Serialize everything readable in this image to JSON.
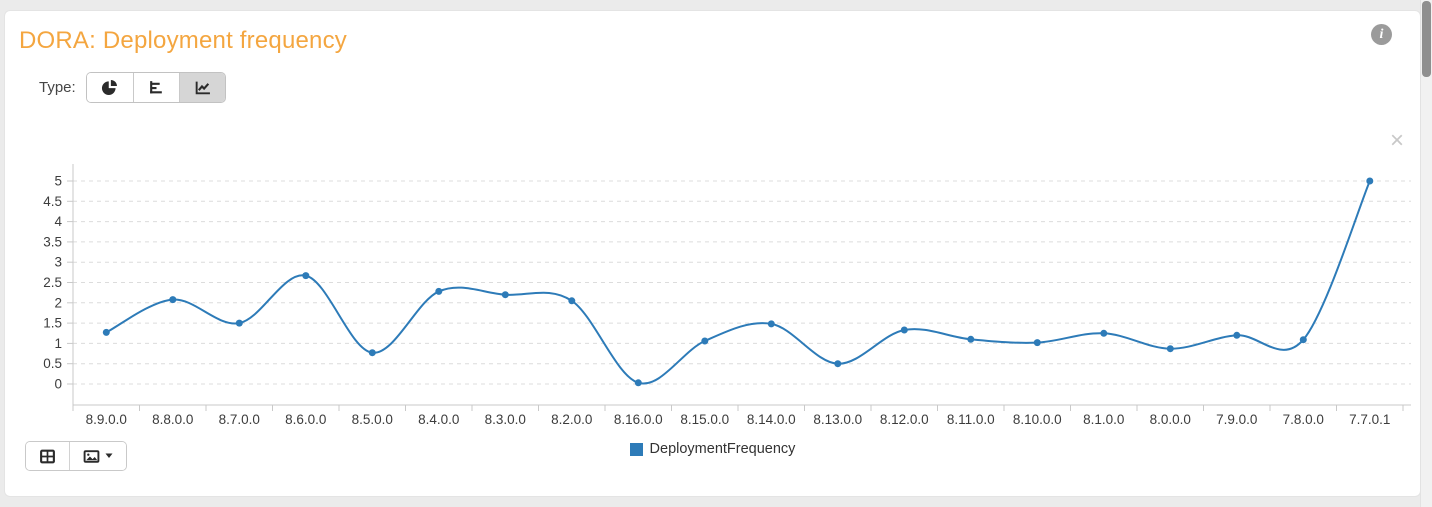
{
  "window": {
    "background_color": "#ebebeb"
  },
  "header": {
    "title": "DORA: Deployment frequency",
    "title_color": "#f4a640",
    "type_label": "Type:",
    "type_options": [
      "pie",
      "bar",
      "line"
    ],
    "selected_type": "line",
    "info_icon_glyph": "i"
  },
  "chart_panel": {
    "close_icon_glyph": "×"
  },
  "chart_data": {
    "type": "line",
    "title": "DORA: Deployment frequency",
    "curve": "spline",
    "markers": true,
    "grid": "horizontal-dashed",
    "legend_position": "bottom",
    "xlabel": "",
    "ylabel": "",
    "ylim": [
      0,
      5
    ],
    "yticks": [
      0,
      0.5,
      1,
      1.5,
      2,
      2.5,
      3,
      3.5,
      4,
      4.5,
      5
    ],
    "categories": [
      "8.9.0.0",
      "8.8.0.0",
      "8.7.0.0",
      "8.6.0.0",
      "8.5.0.0",
      "8.4.0.0",
      "8.3.0.0",
      "8.2.0.0",
      "8.16.0.0",
      "8.15.0.0",
      "8.14.0.0",
      "8.13.0.0",
      "8.12.0.0",
      "8.11.0.0",
      "8.10.0.0",
      "8.1.0.0",
      "8.0.0.0",
      "7.9.0.0",
      "7.8.0.0",
      "7.7.0.1"
    ],
    "series": [
      {
        "name": "DeploymentFrequency",
        "color": "#2d7bb8",
        "values": [
          1.27,
          2.08,
          1.5,
          2.67,
          0.77,
          2.28,
          2.2,
          2.05,
          0.03,
          1.06,
          1.48,
          0.5,
          1.33,
          1.1,
          1.02,
          1.25,
          0.87,
          1.2,
          1.09,
          5
        ]
      }
    ]
  }
}
